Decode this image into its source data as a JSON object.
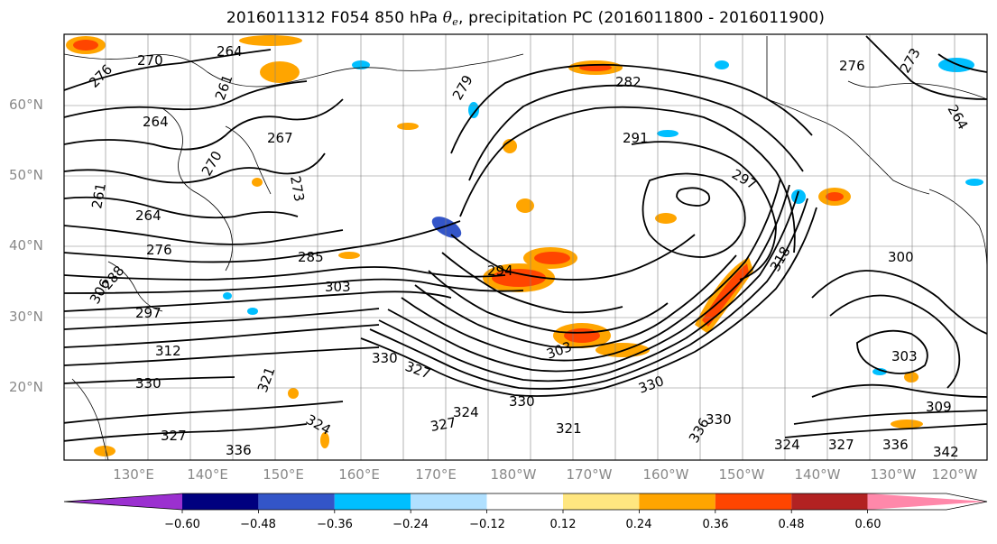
{
  "title": {
    "prefix": "2016011312 F054 850 hPa ",
    "theta": "θ",
    "theta_sub": "e",
    "suffix": ", precipitation PC (2016011800 - 2016011900)"
  },
  "latitude_labels": [
    "60°N",
    "50°N",
    "40°N",
    "30°N",
    "20°N"
  ],
  "longitude_labels": [
    "130°E",
    "140°E",
    "150°E",
    "160°E",
    "170°E",
    "180°W",
    "170°W",
    "160°W",
    "150°W",
    "140°W",
    "130°W",
    "120°W"
  ],
  "contour_labels": [
    "264",
    "270",
    "276",
    "261",
    "264",
    "267",
    "270",
    "273",
    "261",
    "264",
    "276",
    "285",
    "279",
    "282",
    "291",
    "297",
    "294",
    "303",
    "306",
    "297",
    "312",
    "330",
    "327",
    "321",
    "330",
    "330",
    "327",
    "336",
    "303",
    "324",
    "327",
    "321",
    "330",
    "324",
    "330",
    "336",
    "303",
    "309",
    "300",
    "324",
    "327",
    "336",
    "342",
    "276",
    "273",
    "264",
    "318",
    "288"
  ],
  "colorbar": {
    "tick_labels": [
      "−0.60",
      "−0.48",
      "−0.36",
      "−0.24",
      "−0.12",
      "0.12",
      "0.24",
      "0.36",
      "0.48",
      "0.60"
    ],
    "colors": [
      "#9b30d0",
      "#00007f",
      "#3355c8",
      "#00bfff",
      "#b0e0ff",
      "#ffffff",
      "#ffe680",
      "#ffa500",
      "#ff4500",
      "#b22222",
      "#ff88aa"
    ]
  }
}
